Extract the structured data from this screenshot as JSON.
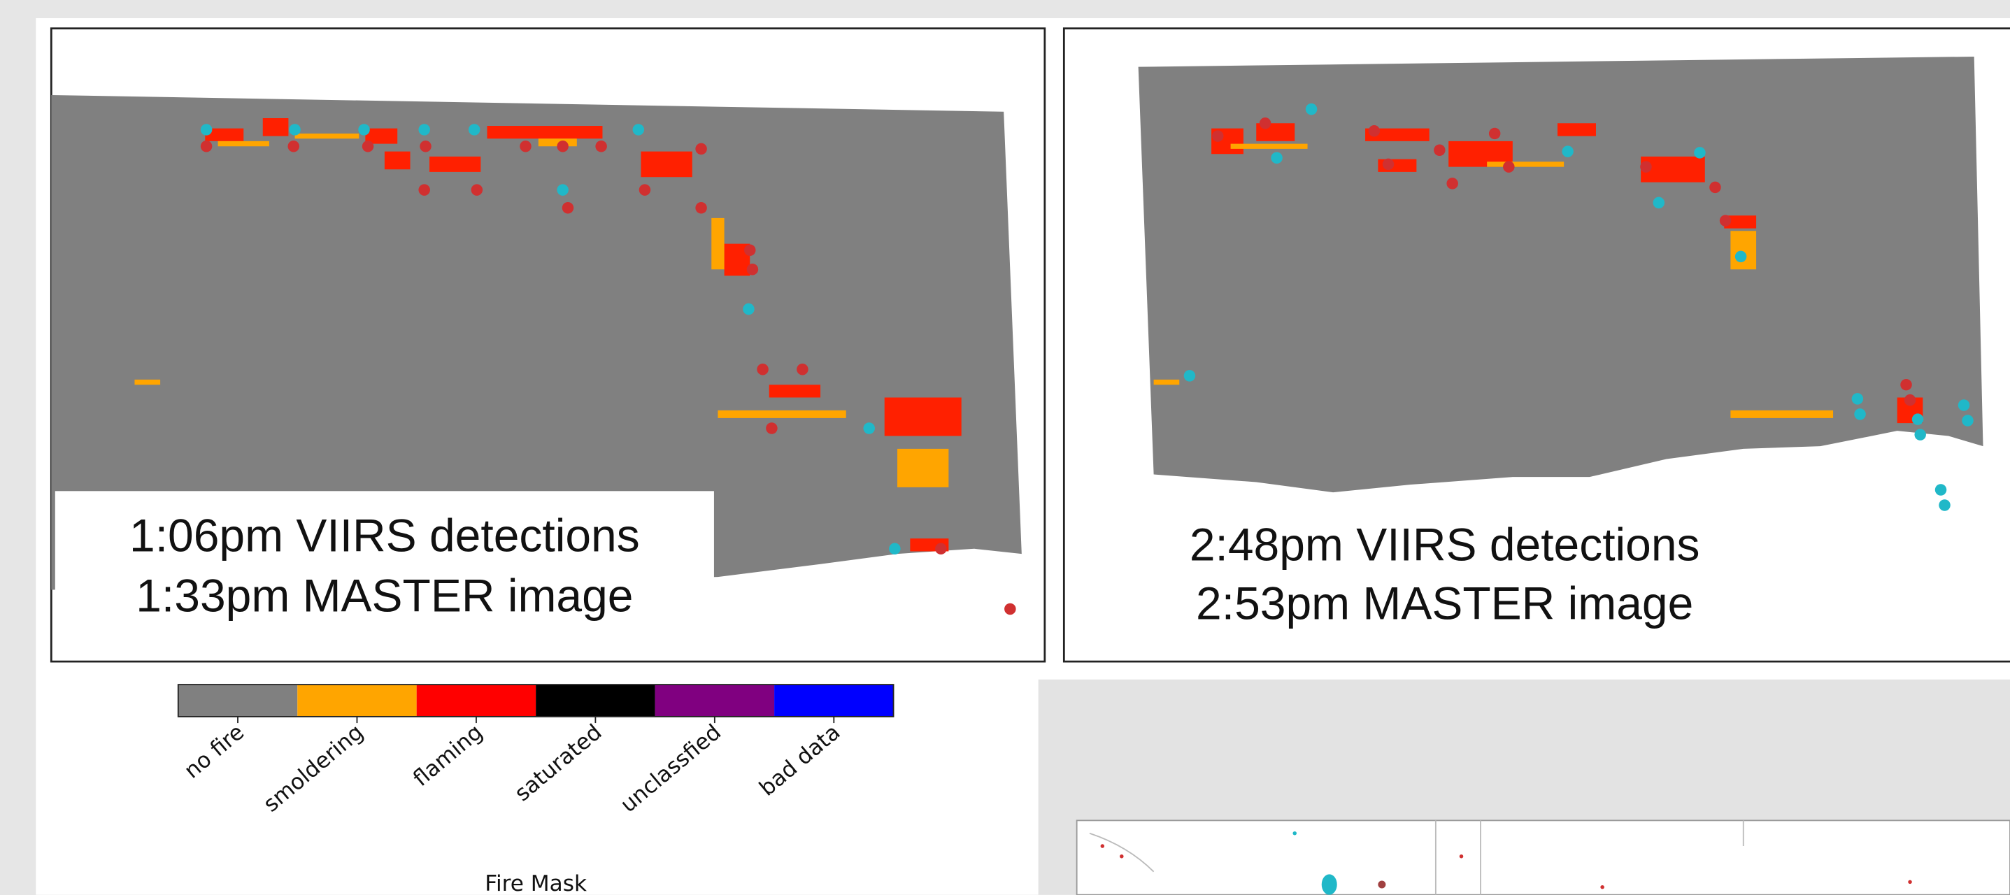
{
  "panels": [
    {
      "captions": [
        "1:06pm VIIRS detections",
        "1:33pm MASTER image"
      ]
    },
    {
      "captions": [
        "2:48pm VIIRS detections",
        "2:53pm MASTER image"
      ]
    }
  ],
  "colorbar": {
    "title": "Fire Mask",
    "classes": [
      {
        "label": "no fire",
        "color": "#808080"
      },
      {
        "label": "smoldering",
        "color": "#ffa500"
      },
      {
        "label": "flaming",
        "color": "#ff0000"
      },
      {
        "label": "saturated",
        "color": "#000000"
      },
      {
        "label": "unclassfied",
        "color": "#800080"
      },
      {
        "label": "bad data",
        "color": "#0000ff"
      }
    ]
  }
}
